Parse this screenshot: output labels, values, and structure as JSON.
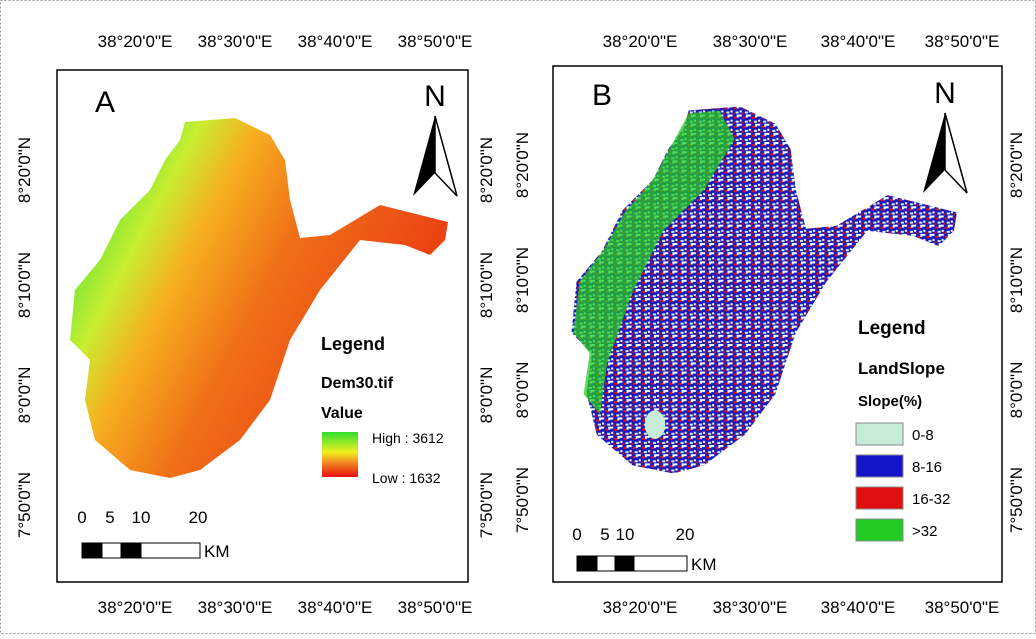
{
  "panels": [
    {
      "label": "A",
      "top_ticks": [
        "38°20'0\"E",
        "38°30'0\"E",
        "38°40'0\"E",
        "38°50'0\"E"
      ],
      "bottom_ticks": [
        "38°20'0\"E",
        "38°30'0\"E",
        "38°40'0\"E",
        "38°50'0\"E"
      ],
      "left_ticks": [
        "8°20'0\"N",
        "8°10'0\"N",
        "8°0'0\"N",
        "7°50'0\"N"
      ],
      "right_ticks": [
        "8°20'0\"N",
        "8°10'0\"N",
        "8°0'0\"N",
        "7°50'0\"N"
      ],
      "north": "N",
      "legend": {
        "title": "Legend",
        "layer": "Dem30.tif",
        "field": "Value",
        "high": "High : 3612",
        "low": "Low : 1632"
      },
      "scale": {
        "labels": [
          "0",
          "5",
          "10",
          "20"
        ],
        "unit": "KM"
      }
    },
    {
      "label": "B",
      "top_ticks": [
        "38°20'0\"E",
        "38°30'0\"E",
        "38°40'0\"E",
        "38°50'0\"E"
      ],
      "bottom_ticks": [
        "38°20'0\"E",
        "38°30'0\"E",
        "38°40'0\"E",
        "38°50'0\"E"
      ],
      "left_ticks": [
        "8°20'0\"N",
        "8°10'0\"N",
        "8°0'0\"N",
        "7°50'0\"N"
      ],
      "right_ticks": [
        "8°20'0\"N",
        "8°10'0\"N",
        "8°0'0\"N",
        "7°50'0\"N"
      ],
      "north": "N",
      "legend": {
        "title": "Legend",
        "layer": "LandSlope",
        "field": "Slope(%)",
        "classes": [
          {
            "label": "0-8",
            "color": "#c6ecd9"
          },
          {
            "label": "8-16",
            "color": "#1414c8"
          },
          {
            "label": "16-32",
            "color": "#e01010"
          },
          {
            "label": ">32",
            "color": "#22cc22"
          }
        ]
      },
      "scale": {
        "labels": [
          "0",
          "5",
          "10",
          "20"
        ],
        "unit": "KM"
      }
    }
  ]
}
